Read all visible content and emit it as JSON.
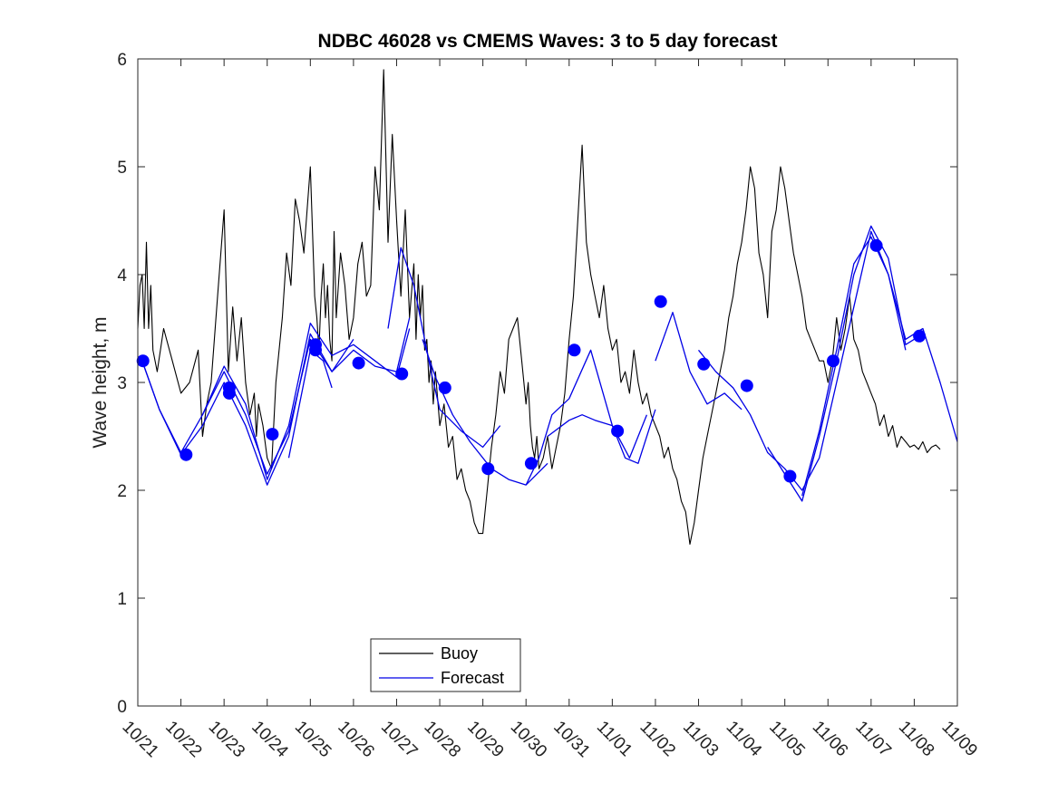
{
  "chart_data": {
    "type": "line",
    "title": "NDBC 46028 vs CMEMS Waves: 3 to 5 day forecast",
    "xlabel": "",
    "ylabel": "Wave height, m",
    "xlim": [
      0,
      19
    ],
    "ylim": [
      0,
      6
    ],
    "yticks": [
      0,
      1,
      2,
      3,
      4,
      5,
      6
    ],
    "xtick_labels": [
      "10/21",
      "10/22",
      "10/23",
      "10/24",
      "10/25",
      "10/26",
      "10/27",
      "10/28",
      "10/29",
      "10/30",
      "10/31",
      "11/01",
      "11/02",
      "11/03",
      "11/04",
      "11/05",
      "11/06",
      "11/07",
      "11/08",
      "11/09"
    ],
    "legend": {
      "position": "bottom-left",
      "entries": [
        "Buoy",
        "Forecast"
      ]
    },
    "colors": {
      "buoy": "#000000",
      "forecast": "#0000e6",
      "markers": "#0000ff"
    },
    "series": [
      {
        "name": "Buoy",
        "x": [
          0.0,
          0.05,
          0.1,
          0.15,
          0.2,
          0.25,
          0.3,
          0.35,
          0.45,
          0.6,
          0.8,
          1.0,
          1.2,
          1.4,
          1.5,
          1.6,
          1.7,
          1.85,
          2.0,
          2.1,
          2.2,
          2.3,
          2.4,
          2.5,
          2.6,
          2.7,
          2.75,
          2.8,
          2.9,
          3.0,
          3.1,
          3.2,
          3.35,
          3.45,
          3.55,
          3.65,
          3.75,
          3.85,
          4.0,
          4.1,
          4.15,
          4.2,
          4.25,
          4.3,
          4.35,
          4.4,
          4.45,
          4.5,
          4.55,
          4.6,
          4.7,
          4.8,
          4.9,
          5.0,
          5.1,
          5.2,
          5.3,
          5.4,
          5.5,
          5.6,
          5.7,
          5.8,
          5.9,
          6.0,
          6.1,
          6.2,
          6.3,
          6.4,
          6.45,
          6.5,
          6.55,
          6.6,
          6.65,
          6.7,
          6.75,
          6.8,
          6.85,
          6.9,
          7.0,
          7.1,
          7.2,
          7.3,
          7.4,
          7.5,
          7.6,
          7.7,
          7.8,
          7.9,
          8.0,
          8.1,
          8.2,
          8.3,
          8.4,
          8.5,
          8.6,
          8.7,
          8.8,
          8.9,
          9.0,
          9.05,
          9.1,
          9.15,
          9.2,
          9.25,
          9.3,
          9.4,
          9.5,
          9.6,
          9.7,
          9.8,
          9.9,
          10.0,
          10.1,
          10.2,
          10.3,
          10.4,
          10.5,
          10.6,
          10.7,
          10.8,
          10.9,
          11.0,
          11.1,
          11.2,
          11.3,
          11.4,
          11.5,
          11.6,
          11.7,
          11.8,
          11.9,
          12.0,
          12.1,
          12.2,
          12.3,
          12.4,
          12.5,
          12.6,
          12.7,
          12.8,
          12.9,
          13.0,
          13.1,
          13.2,
          13.3,
          13.4,
          13.5,
          13.6,
          13.7,
          13.8,
          13.9,
          14.0,
          14.1,
          14.2,
          14.3,
          14.4,
          14.5,
          14.6,
          14.7,
          14.8,
          14.9,
          15.0,
          15.1,
          15.2,
          15.3,
          15.4,
          15.5,
          15.6,
          15.7,
          15.8,
          15.9,
          16.0,
          16.1,
          16.2,
          16.3,
          16.4,
          16.5,
          16.6,
          16.7,
          16.8,
          16.9,
          17.0,
          17.1,
          17.2,
          17.3,
          17.4,
          17.5,
          17.6,
          17.7,
          17.8,
          17.9,
          18.0,
          18.1,
          18.2,
          18.3,
          18.4,
          18.5,
          18.6
        ],
        "values": [
          3.5,
          3.9,
          4.0,
          3.5,
          4.3,
          3.5,
          3.9,
          3.3,
          3.1,
          3.5,
          3.2,
          2.9,
          3.0,
          3.3,
          2.5,
          2.8,
          3.0,
          3.8,
          4.6,
          3.1,
          3.7,
          3.2,
          3.6,
          3.0,
          2.7,
          2.9,
          2.5,
          2.8,
          2.6,
          2.3,
          2.2,
          3.0,
          3.6,
          4.2,
          3.9,
          4.7,
          4.5,
          4.2,
          5.0,
          3.8,
          3.6,
          3.3,
          3.8,
          4.1,
          3.6,
          3.9,
          3.4,
          3.2,
          4.4,
          3.6,
          4.2,
          3.9,
          3.4,
          3.6,
          4.1,
          4.3,
          3.8,
          3.9,
          5.0,
          4.6,
          5.9,
          4.3,
          5.3,
          4.5,
          3.8,
          4.6,
          3.6,
          4.1,
          3.4,
          4.0,
          3.6,
          3.9,
          3.3,
          3.4,
          3.0,
          3.2,
          2.8,
          3.1,
          2.6,
          2.8,
          2.4,
          2.5,
          2.1,
          2.2,
          2.0,
          1.9,
          1.7,
          1.6,
          1.6,
          2.0,
          2.4,
          2.7,
          3.1,
          2.9,
          3.4,
          3.5,
          3.6,
          3.2,
          2.8,
          3.0,
          2.6,
          2.4,
          2.3,
          2.5,
          2.2,
          2.3,
          2.5,
          2.2,
          2.4,
          2.6,
          2.9,
          3.4,
          3.8,
          4.5,
          5.2,
          4.3,
          4.0,
          3.8,
          3.6,
          3.9,
          3.5,
          3.3,
          3.4,
          3.0,
          3.1,
          2.9,
          3.3,
          3.0,
          2.8,
          2.9,
          2.7,
          2.6,
          2.5,
          2.3,
          2.4,
          2.2,
          2.1,
          1.9,
          1.8,
          1.5,
          1.7,
          2.0,
          2.3,
          2.5,
          2.7,
          2.9,
          3.1,
          3.3,
          3.6,
          3.8,
          4.1,
          4.3,
          4.6,
          5.0,
          4.8,
          4.2,
          4.0,
          3.6,
          4.4,
          4.6,
          5.0,
          4.8,
          4.5,
          4.2,
          4.0,
          3.8,
          3.5,
          3.4,
          3.3,
          3.2,
          3.2,
          3.0,
          3.2,
          3.6,
          3.3,
          3.5,
          3.8,
          3.4,
          3.3,
          3.1,
          3.0,
          2.9,
          2.8,
          2.6,
          2.7,
          2.5,
          2.6,
          2.4,
          2.5,
          2.45,
          2.4,
          2.42,
          2.38,
          2.45,
          2.35,
          2.4,
          2.42,
          2.38
        ]
      },
      {
        "name": "Forecast",
        "segments": [
          {
            "x": [
              0.1,
              0.5,
              1.0,
              1.5,
              2.0,
              2.5,
              3.0,
              3.5,
              4.0,
              4.5,
              5.0,
              5.5,
              6.0,
              6.3
            ],
            "values": [
              3.2,
              2.75,
              2.35,
              2.7,
              3.15,
              2.8,
              2.1,
              2.6,
              3.55,
              3.25,
              3.35,
              3.2,
              3.05,
              3.5
            ]
          },
          {
            "x": [
              0.1,
              0.5,
              1.0,
              1.5,
              2.0,
              2.5,
              3.0,
              3.5,
              4.0,
              4.5,
              5.0,
              5.5,
              6.0,
              6.3
            ],
            "values": [
              3.2,
              2.75,
              2.33,
              2.6,
              3.0,
              2.6,
              2.05,
              2.5,
              3.45,
              3.1,
              3.3,
              3.15,
              3.1,
              3.6
            ]
          },
          {
            "x": [
              1.5,
              2.0,
              2.5,
              3.0,
              3.5,
              4.0,
              4.5,
              5.0
            ],
            "values": [
              2.7,
              3.1,
              2.7,
              2.15,
              2.55,
              3.4,
              3.1,
              3.4
            ]
          },
          {
            "x": [
              3.5,
              3.8,
              4.0,
              4.3,
              4.5
            ],
            "values": [
              2.3,
              2.9,
              3.3,
              3.2,
              2.95
            ]
          },
          {
            "x": [
              5.8,
              6.1,
              6.4,
              6.6,
              6.8,
              7.0,
              7.5,
              8.0,
              8.4
            ],
            "values": [
              3.5,
              4.25,
              3.9,
              3.5,
              3.1,
              2.75,
              2.55,
              2.4,
              2.6
            ]
          },
          {
            "x": [
              6.6,
              6.9,
              7.3,
              7.7,
              8.2,
              8.6,
              9.0,
              9.5
            ],
            "values": [
              3.4,
              3.05,
              2.7,
              2.45,
              2.2,
              2.1,
              2.05,
              2.25
            ]
          },
          {
            "x": [
              9.0,
              9.3,
              9.6,
              10.0,
              10.5,
              11.0,
              11.3,
              11.6,
              12.0
            ],
            "values": [
              2.05,
              2.3,
              2.7,
              2.85,
              3.3,
              2.6,
              2.3,
              2.25,
              2.75
            ]
          },
          {
            "x": [
              9.5,
              10.0,
              10.3,
              10.6,
              11.0,
              11.4,
              11.8
            ],
            "values": [
              2.5,
              2.65,
              2.7,
              2.65,
              2.6,
              2.3,
              2.7
            ]
          },
          {
            "x": [
              12.0,
              12.4,
              12.8,
              13.2,
              13.6,
              14.0
            ],
            "values": [
              3.2,
              3.65,
              3.1,
              2.8,
              2.9,
              2.75
            ]
          },
          {
            "x": [
              13.0,
              13.4,
              13.8,
              14.2,
              14.6,
              15.0,
              15.4,
              15.8,
              16.2,
              16.6,
              17.0,
              17.4,
              17.8,
              18.2,
              18.6,
              19.0
            ],
            "values": [
              3.3,
              3.1,
              2.95,
              2.7,
              2.35,
              2.2,
              2.0,
              2.3,
              3.0,
              3.7,
              4.4,
              4.0,
              3.4,
              3.5,
              3.0,
              2.45
            ]
          },
          {
            "x": [
              14.6,
              15.0,
              15.4,
              15.8,
              16.2,
              16.6,
              17.0,
              17.4,
              17.8,
              18.2
            ],
            "values": [
              2.4,
              2.15,
              1.9,
              2.5,
              3.2,
              4.0,
              4.45,
              4.15,
              3.35,
              3.45
            ]
          },
          {
            "x": [
              15.4,
              15.8,
              16.2,
              16.6,
              17.0,
              17.4,
              17.8
            ],
            "values": [
              1.95,
              2.55,
              3.3,
              4.1,
              4.35,
              4.0,
              3.3
            ]
          }
        ]
      },
      {
        "name": "Forecast markers",
        "x": [
          0.12,
          1.12,
          2.12,
          2.12,
          3.12,
          4.12,
          4.12,
          5.12,
          6.12,
          7.12,
          8.12,
          9.12,
          10.12,
          11.12,
          12.12,
          13.12,
          14.12,
          15.12,
          16.12,
          17.12,
          18.12
        ],
        "values": [
          3.2,
          2.33,
          2.9,
          2.95,
          2.52,
          3.3,
          3.35,
          3.18,
          3.08,
          2.95,
          2.2,
          2.25,
          3.3,
          2.55,
          3.75,
          3.17,
          2.97,
          2.13,
          3.2,
          4.27,
          3.43
        ]
      }
    ]
  }
}
